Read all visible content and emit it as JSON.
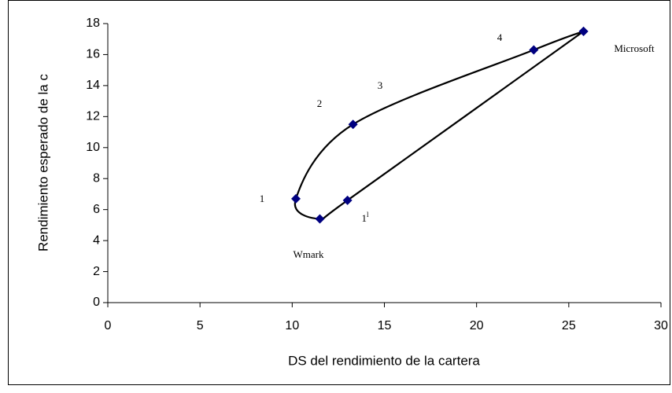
{
  "chart_data": {
    "type": "line",
    "xlabel": "DS del rendimiento de la cartera",
    "ylabel": "Rendimiento esperado de la c",
    "series": [
      {
        "color": "#000080",
        "x": [
          25.8,
          23.1,
          13.3,
          10.2,
          11.5,
          13.0,
          25.8
        ],
        "values": [
          17.5,
          16.3,
          11.5,
          6.7,
          5.4,
          6.6,
          17.5
        ]
      }
    ],
    "annotations": [
      {
        "text": "1"
      },
      {
        "text": "2"
      },
      {
        "text": "3"
      },
      {
        "text": "4"
      },
      {
        "text": "Microsoft"
      },
      {
        "text": "Wmark"
      },
      {
        "text": "1",
        "sup": "l"
      }
    ],
    "xlim": [
      0,
      30
    ],
    "xticks": [
      0,
      5,
      10,
      15,
      20,
      25,
      30
    ],
    "ylim": [
      0,
      18
    ],
    "yticks": [
      0,
      2,
      4,
      6,
      8,
      10,
      12,
      14,
      16,
      18
    ],
    "grid": false
  }
}
